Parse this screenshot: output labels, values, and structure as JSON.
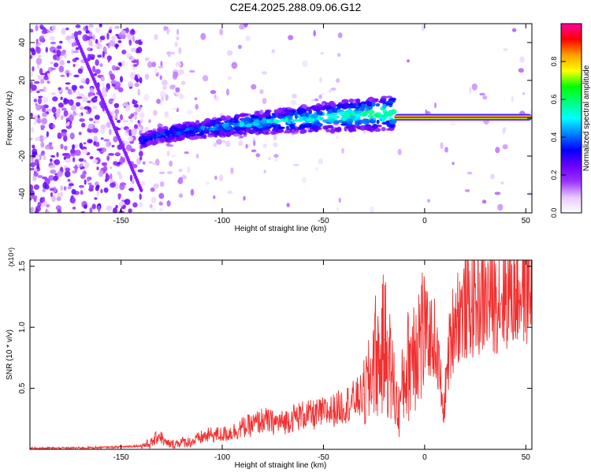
{
  "figure": {
    "title": "C2E4.2025.288.09.06.G12"
  },
  "chart_data": [
    {
      "type": "heatmap",
      "title": "C2E4.2025.288.09.06.G12",
      "xlabel": "Height of straight line (km)",
      "ylabel": "Frequency (Hz)",
      "xlim": [
        -195,
        53
      ],
      "ylim": [
        -50,
        50
      ],
      "xticks": [
        -150,
        -100,
        -50,
        0,
        50
      ],
      "yticks": [
        40,
        20,
        0,
        -20,
        -40
      ],
      "colorbar": {
        "label": "Normalized spectral amplitude",
        "range": [
          0.0,
          1.0
        ],
        "ticks": [
          0.0,
          0.2,
          0.4,
          0.6,
          0.8
        ],
        "colors": [
          "#ffffff",
          "#e6c8ff",
          "#9b30ff",
          "#6a00ff",
          "#0000ff",
          "#0080ff",
          "#00ffff",
          "#00ff80",
          "#00ff00",
          "#ffff00",
          "#ffa000",
          "#ff0000",
          "#ff00a0"
        ]
      },
      "features": [
        {
          "name": "high-amplitude trace",
          "x_start": -15,
          "x_end": 53,
          "frequency": 0.5,
          "amplitude": 0.95
        },
        {
          "name": "broad trace band",
          "x_start": -140,
          "x_end": -15,
          "frequency_start": -13,
          "frequency_end": 3,
          "amplitude": 0.35
        },
        {
          "name": "diagonal streak",
          "x_start": -172,
          "x_end": -140,
          "frequency_start": 42,
          "frequency_end": -38,
          "amplitude": 0.2
        }
      ]
    },
    {
      "type": "line",
      "xlabel": "Height of straight line (km)",
      "ylabel": "SNR (10 * v/v)",
      "yscale_label": "(x10⁴)",
      "color": "#f03030",
      "xlim": [
        -195,
        53
      ],
      "ylim": [
        0,
        1.55
      ],
      "xticks": [
        -150,
        -100,
        -50,
        0,
        50
      ],
      "yticks": [
        0.5,
        1.0,
        1.5
      ],
      "series": [
        {
          "name": "SNR",
          "x": [
            -195,
            -180,
            -160,
            -150,
            -140,
            -135,
            -131,
            -128,
            -125,
            -120,
            -115,
            -110,
            -105,
            -100,
            -95,
            -90,
            -85,
            -80,
            -75,
            -70,
            -65,
            -60,
            -55,
            -50,
            -45,
            -40,
            -35,
            -30,
            -27,
            -25,
            -22,
            -20,
            -18,
            -15,
            -13,
            -10,
            -8,
            -5,
            0,
            5,
            8,
            9,
            12,
            15,
            20,
            25,
            30,
            35,
            40,
            45,
            50,
            53
          ],
          "values": [
            0.01,
            0.01,
            0.015,
            0.02,
            0.03,
            0.05,
            0.12,
            0.05,
            0.04,
            0.06,
            0.06,
            0.1,
            0.12,
            0.12,
            0.14,
            0.18,
            0.2,
            0.24,
            0.22,
            0.22,
            0.26,
            0.28,
            0.28,
            0.3,
            0.32,
            0.36,
            0.4,
            0.45,
            0.55,
            0.8,
            0.7,
            0.9,
            0.75,
            0.5,
            0.3,
            0.6,
            0.7,
            0.9,
            0.95,
            0.9,
            0.55,
            0.25,
            0.8,
            1.1,
            1.15,
            1.2,
            1.22,
            1.25,
            1.28,
            1.3,
            1.35,
            1.33
          ]
        }
      ]
    }
  ]
}
